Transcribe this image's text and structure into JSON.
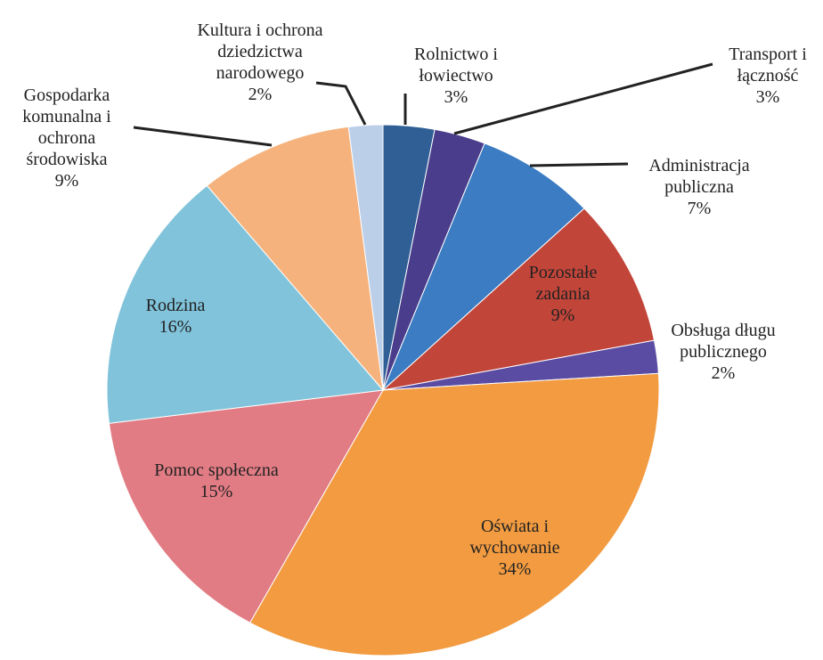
{
  "chart_data": {
    "type": "pie",
    "categories": [
      "Rolnictwo i łowiectwo",
      "Transport i łączność",
      "Administracja publiczna",
      "Pozostałe zadania",
      "Obsługa długu publicznego",
      "Oświata i wychowanie",
      "Pomoc społeczna",
      "Rodzina",
      "Gospodarka komunalna i ochrona środowiska",
      "Kultura i ochrona dziedzictwa narodowego"
    ],
    "values": [
      3,
      3,
      7,
      9,
      2,
      34,
      15,
      16,
      9,
      2
    ],
    "value_labels": [
      "3%",
      "3%",
      "7%",
      "9%",
      "2%",
      "34%",
      "15%",
      "16%",
      "9%",
      "2%"
    ],
    "colors": [
      "#2f5f95",
      "#4a3e8c",
      "#3b7cc2",
      "#c2453a",
      "#5b4ca3",
      "#f29b40",
      "#e27c84",
      "#80c3da",
      "#f5b27c",
      "#bccfe9"
    ]
  }
}
